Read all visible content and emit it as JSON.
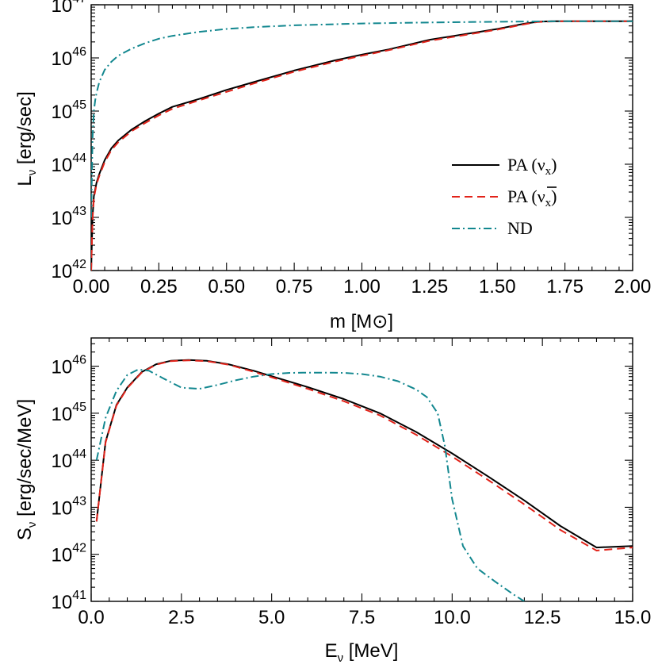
{
  "chart_data": [
    {
      "type": "line",
      "xlabel": "m [M",
      "xlabel_symbol": "⊙",
      "xlabel_end": "]",
      "ylabel_main": "L",
      "ylabel_sub": "ν",
      "ylabel_unit": " [erg/sec]",
      "xlim": [
        0.0,
        2.0
      ],
      "ylim_log10": [
        42,
        47
      ],
      "log_y": true,
      "xticks": [
        "0.00",
        "0.25",
        "0.50",
        "0.75",
        "1.00",
        "1.25",
        "1.50",
        "1.75",
        "2.00"
      ],
      "ytick_base": "10",
      "ytick_exponents": [
        "42",
        "43",
        "44",
        "45",
        "46",
        "47"
      ],
      "legend_position": "lower-right",
      "legend": [
        {
          "text": "PA (ν",
          "sub": "x",
          "close": ")",
          "bar": false
        },
        {
          "text": "PA (ν",
          "sub": "x",
          "close": ")",
          "bar": true
        },
        {
          "text": "ND",
          "sub": "",
          "close": "",
          "bar": false
        }
      ],
      "series": [
        {
          "name": "PA (νx)",
          "color": "#000000",
          "dash": "solid",
          "x": [
            0.0,
            0.005,
            0.01,
            0.02,
            0.03,
            0.05,
            0.075,
            0.1,
            0.15,
            0.2,
            0.25,
            0.3,
            0.4,
            0.5,
            0.6,
            0.75,
            0.9,
            1.0,
            1.1,
            1.25,
            1.4,
            1.5,
            1.6,
            1.65,
            1.7,
            1.75,
            2.0
          ],
          "y": [
            1e+42,
            1e+43,
            2.5e+43,
            4.5e+43,
            6.5e+43,
            1.2e+44,
            2e+44,
            2.8e+44,
            4.5e+44,
            6.5e+44,
            9e+44,
            1.2e+45,
            1.7e+45,
            2.5e+45,
            3.5e+45,
            5.8e+45,
            9e+45,
            1.15e+46,
            1.45e+46,
            2.2e+46,
            2.9e+46,
            3.5e+46,
            4.4e+46,
            4.8e+46,
            4.9e+46,
            4.9e+46,
            4.9e+46
          ]
        },
        {
          "name": "PA (ν̄x)",
          "color": "#e2231a",
          "dash": "dashed",
          "x": [
            0.0,
            0.005,
            0.01,
            0.02,
            0.03,
            0.05,
            0.075,
            0.1,
            0.15,
            0.2,
            0.25,
            0.3,
            0.4,
            0.5,
            0.6,
            0.75,
            0.9,
            1.0,
            1.1,
            1.25,
            1.4,
            1.5,
            1.6,
            1.65,
            1.7,
            1.75,
            2.0
          ],
          "y": [
            1e+42,
            9e+42,
            2.3e+43,
            4.2e+43,
            6e+43,
            1.1e+44,
            1.85e+44,
            2.6e+44,
            4.2e+44,
            6e+44,
            8.3e+44,
            1.1e+45,
            1.6e+45,
            2.3e+45,
            3.3e+45,
            5.5e+45,
            8.5e+45,
            1.1e+46,
            1.4e+46,
            2.1e+46,
            2.8e+46,
            3.4e+46,
            4.3e+46,
            4.75e+46,
            4.85e+46,
            4.9e+46,
            4.9e+46
          ]
        },
        {
          "name": "ND",
          "color": "#12878f",
          "dash": "dashdot",
          "x": [
            0.0,
            0.005,
            0.01,
            0.015,
            0.02,
            0.03,
            0.05,
            0.075,
            0.1,
            0.15,
            0.2,
            0.25,
            0.3,
            0.4,
            0.5,
            0.6,
            0.75,
            1.0,
            1.25,
            1.5,
            1.75,
            2.0
          ],
          "y": [
            1e+43,
            3e+44,
            1e+45,
            1.6e+45,
            2.2e+45,
            3.5e+45,
            6e+45,
            8.5e+45,
            1.1e+46,
            1.5e+46,
            1.9e+46,
            2.3e+46,
            2.6e+46,
            3.1e+46,
            3.5e+46,
            3.8e+46,
            4.1e+46,
            4.45e+46,
            4.65e+46,
            4.8e+46,
            4.9e+46,
            4.9e+46
          ]
        }
      ]
    },
    {
      "type": "line",
      "xlabel_main": "E",
      "xlabel_sub": "ν",
      "xlabel_unit": " [MeV]",
      "ylabel_main": "S",
      "ylabel_sub": "ν",
      "ylabel_unit": " [erg/sec/MeV]",
      "xlim": [
        0.0,
        15.0
      ],
      "ylim_log10": [
        41,
        46.6
      ],
      "log_y": true,
      "xticks": [
        "0.0",
        "2.5",
        "5.0",
        "7.5",
        "10.0",
        "12.5",
        "15.0"
      ],
      "ytick_base": "10",
      "ytick_exponents": [
        "41",
        "42",
        "43",
        "44",
        "45",
        "46"
      ],
      "series": [
        {
          "name": "PA (νx)",
          "color": "#000000",
          "dash": "solid",
          "x": [
            0.15,
            0.4,
            0.7,
            1.0,
            1.4,
            1.8,
            2.2,
            2.7,
            3.2,
            3.8,
            4.5,
            5.2,
            6.0,
            7.0,
            8.0,
            9.0,
            10.0,
            11.0,
            12.0,
            13.0,
            14.0,
            15.0
          ],
          "y": [
            5e+42,
            2.5e+44,
            1.5e+45,
            3.5e+45,
            7.5e+45,
            1.1e+46,
            1.3e+46,
            1.35e+46,
            1.3e+46,
            1.1e+46,
            8e+45,
            5.5e+45,
            3.6e+45,
            2e+45,
            1e+45,
            4e+44,
            1.4e+44,
            4.5e+43,
            1.4e+43,
            4e+42,
            1.4e+42,
            1.5e+42
          ]
        },
        {
          "name": "PA (ν̄x)",
          "color": "#e2231a",
          "dash": "dashed",
          "x": [
            0.15,
            0.4,
            0.7,
            1.0,
            1.4,
            1.8,
            2.2,
            2.7,
            3.2,
            3.8,
            4.5,
            5.2,
            6.0,
            7.0,
            8.0,
            9.0,
            10.0,
            11.0,
            12.0,
            13.0,
            14.0,
            15.0
          ],
          "y": [
            5e+42,
            2.4e+44,
            1.45e+45,
            3.4e+45,
            7.3e+45,
            1.08e+46,
            1.28e+46,
            1.33e+46,
            1.28e+46,
            1.08e+46,
            7.6e+45,
            5.2e+45,
            3.3e+45,
            1.8e+45,
            9e+44,
            3.5e+44,
            1.2e+44,
            3.8e+43,
            1.15e+43,
            3.3e+42,
            1.2e+42,
            1.4e+42
          ]
        },
        {
          "name": "ND",
          "color": "#12878f",
          "dash": "dashdot",
          "x": [
            0.15,
            0.4,
            0.7,
            1.0,
            1.3,
            1.6,
            2.0,
            2.5,
            3.0,
            3.5,
            4.0,
            4.5,
            5.0,
            5.5,
            6.0,
            6.5,
            7.0,
            7.5,
            8.0,
            8.5,
            9.0,
            9.3,
            9.6,
            9.8,
            10.0,
            10.3,
            10.7,
            11.2,
            11.7,
            12.0
          ],
          "y": [
            1e+44,
            8e+44,
            3e+45,
            6.5e+45,
            8.5e+45,
            8e+45,
            5.5e+45,
            3.5e+45,
            3.3e+45,
            4e+45,
            5e+45,
            6e+45,
            6.8e+45,
            7.2e+45,
            7.3e+45,
            7.3e+45,
            7.2e+45,
            6.8e+45,
            6e+45,
            4.8e+45,
            3.2e+45,
            2.2e+45,
            1e+45,
            2e+44,
            1.5e+43,
            1.5e+42,
            5e+41,
            2.6e+41,
            1.4e+41,
            1e+41
          ]
        }
      ]
    }
  ]
}
